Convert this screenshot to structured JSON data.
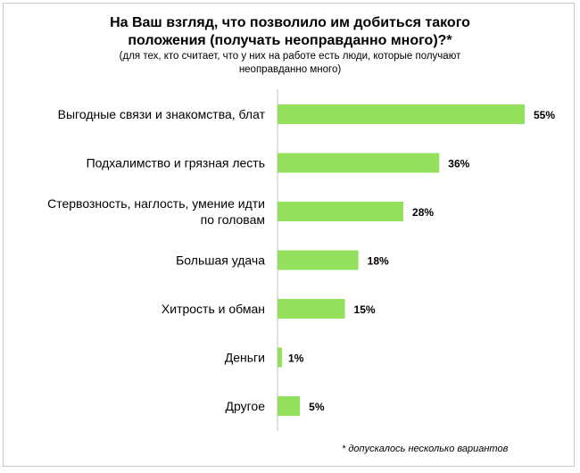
{
  "chart_data": {
    "type": "bar",
    "orientation": "horizontal",
    "title": "На Ваш взгляд, что позволило им добиться такого положения (получать неоправданно много)?*",
    "subtitle": "(для тех, кто считает, что у них на работе есть люди, которые получают неоправданно много)",
    "categories": [
      [
        "Выгодные связи и знакомства, блат"
      ],
      [
        "Подхалимство и грязная лесть"
      ],
      [
        "Стервозность, наглость, умение идти",
        "по головам"
      ],
      [
        "Большая удача"
      ],
      [
        "Хитрость и обман"
      ],
      [
        "Деньги"
      ],
      [
        "Другое"
      ]
    ],
    "values": [
      55,
      36,
      28,
      18,
      15,
      1,
      5
    ],
    "value_labels": [
      "55%",
      "36%",
      "28%",
      "18%",
      "15%",
      "1%",
      "5%"
    ],
    "unit": "%",
    "xlim": [
      0,
      60
    ],
    "grid": false,
    "bar_color": "#92e05c",
    "footnote": "* допускалось несколько вариантов"
  }
}
